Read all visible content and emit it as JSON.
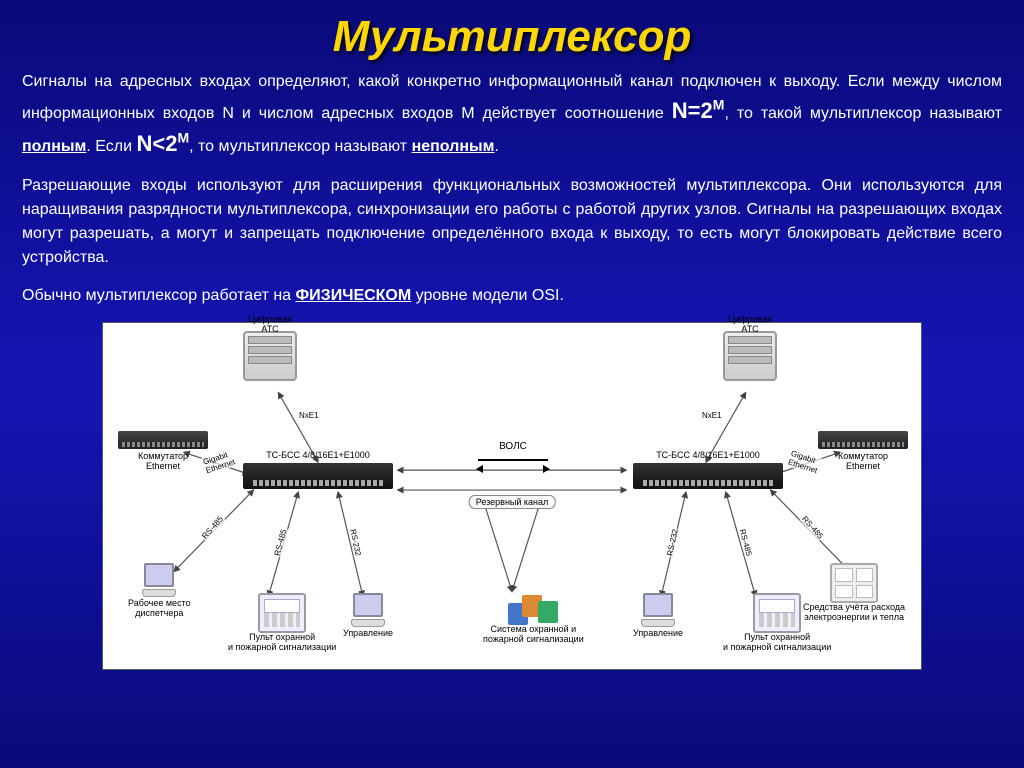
{
  "title": "Мультиплексор",
  "para1_pre": "Сигналы на адресных входах определяют, какой конкретно информационный канал подключен к выходу. Если между числом информационных входов N и числом адресных входов M действует соотношение ",
  "formula1_base": "N=2",
  "formula1_sup": "M",
  "para1_mid": ", то такой мультиплексор называют ",
  "full_word": "полным",
  "para1_mid2": ". Если ",
  "formula2_base": "N<2",
  "formula2_sup": "M",
  "para1_mid3": ", то мультиплексор называют ",
  "incomplete_word": "неполным",
  "para1_end": ".",
  "para2": "Разрешающие входы используют для расширения функциональных возможностей мультиплексора. Они используются для наращивания разрядности мультиплексора, синхронизации его работы с работой других узлов. Сигналы на разрешающих входах могут разрешать, а могут и запрещать подключение определённого входа к выходу, то есть могут блокировать действие всего устройства.",
  "para3_pre": "Обычно мультиплексор работает на ",
  "physical": "ФИЗИЧЕСКОМ",
  "para3_post": " уровне модели OSI.",
  "diagram": {
    "ats_label": "Цифровая\nАТС",
    "ethernet_switch": "Коммутатор\nEthernet",
    "mux_label": "ТС-БСС 4/8/16E1+E1000",
    "workstation": "Рабочее место\nдиспетчера",
    "alarm_panel": "Пульт охранной\nи пожарной сигнализации",
    "management": "Управление",
    "alarm_system": "Система охранной и\nпожарной сигнализации",
    "metering": "Средства учёта расхода\nэлектроэнергии и тепла",
    "nxe1": "NxE1",
    "gigabit": "Gigabit\nEthernet",
    "rs485": "RS-485",
    "rs232": "RS-232",
    "vols": "ВОЛС",
    "reserve": "Резервный канал"
  },
  "colors": {
    "title": "#ffd700",
    "text": "#ffffff",
    "bg_top": "#0a0a7a",
    "bg_mid": "#1515b5"
  }
}
